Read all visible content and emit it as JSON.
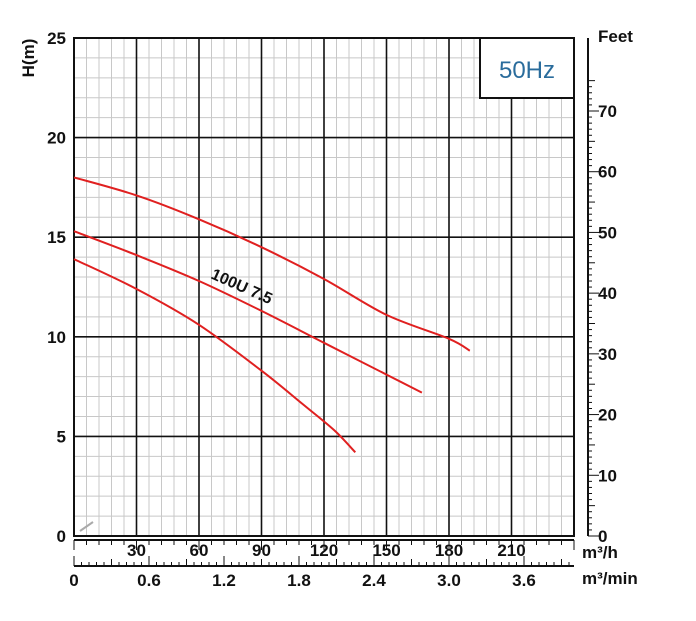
{
  "chart_data": {
    "type": "line",
    "title": "",
    "frequency_label": "50Hz",
    "ylabel": "H(m)",
    "ylabel_right": "Feet",
    "x_unit_primary": "m³/h",
    "x_unit_secondary": "m³/min",
    "xlim": [
      0,
      240
    ],
    "ylim": [
      0,
      25
    ],
    "y_ticks": [
      "0",
      "5",
      "10",
      "15",
      "20",
      "25"
    ],
    "y_tick_values": [
      0,
      5,
      10,
      15,
      20,
      25
    ],
    "x_ticks_primary": [
      "30",
      "60",
      "90",
      "120",
      "150",
      "180",
      "210"
    ],
    "x_tick_values_primary": [
      30,
      60,
      90,
      120,
      150,
      180,
      210
    ],
    "x_ticks_secondary": [
      "0",
      "0.6",
      "1.2",
      "1.8",
      "2.4",
      "3.0",
      "3.6"
    ],
    "x_tick_values_secondary": [
      0,
      36,
      72,
      108,
      144,
      180,
      216
    ],
    "feet_ticks": [
      "0",
      "10",
      "20",
      "30",
      "40",
      "50",
      "60",
      "70"
    ],
    "feet_tick_values": [
      0,
      10,
      20,
      30,
      40,
      50,
      60,
      70
    ],
    "grid": true,
    "model_label": "100U  7.5",
    "series_color": "#e02020",
    "series": [
      {
        "x": [
          0,
          30,
          60,
          90,
          120,
          150,
          180,
          190
        ],
        "y": [
          18.0,
          17.1,
          15.9,
          14.5,
          12.9,
          11.1,
          9.9,
          9.3
        ]
      },
      {
        "x": [
          0,
          30,
          60,
          90,
          120,
          150,
          167
        ],
        "y": [
          15.3,
          14.1,
          12.8,
          11.3,
          9.7,
          8.1,
          7.2
        ]
      },
      {
        "x": [
          0,
          30,
          60,
          90,
          110,
          125,
          135
        ],
        "y": [
          13.9,
          12.4,
          10.6,
          8.3,
          6.6,
          5.3,
          4.2
        ]
      }
    ]
  }
}
